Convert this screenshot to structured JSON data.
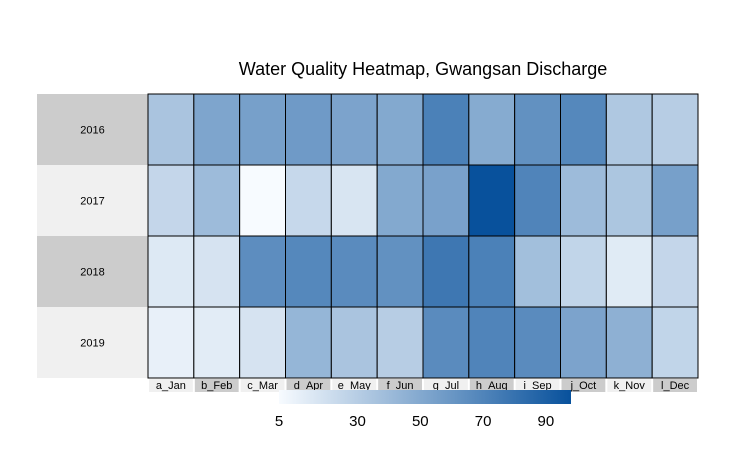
{
  "chart_data": {
    "type": "heatmap",
    "title": "Water Quality Heatmap, Gwangsan Discharge",
    "rows": [
      "2016",
      "2017",
      "2018",
      "2019"
    ],
    "columns": [
      "a_Jan",
      "b_Feb",
      "c_Mar",
      "d_Apr",
      "e_May",
      "f_Jun",
      "g_Jul",
      "h_Aug",
      "i_Sep",
      "j_Oct",
      "k_Nov",
      "l_Dec"
    ],
    "values": [
      [
        35,
        52,
        55,
        58,
        53,
        50,
        72,
        49,
        63,
        68,
        33,
        30
      ],
      [
        25,
        40,
        5,
        24,
        17,
        50,
        54,
        98,
        70,
        40,
        34,
        55
      ],
      [
        15,
        18,
        65,
        68,
        66,
        63,
        77,
        72,
        38,
        26,
        14,
        25
      ],
      [
        11,
        13,
        18,
        43,
        35,
        30,
        66,
        70,
        66,
        53,
        46,
        26
      ]
    ],
    "color_scale": {
      "min": 5,
      "max": 98,
      "low_color": "#f7fbff",
      "high_color": "#08519c"
    },
    "legend": {
      "position": "bottom",
      "ticks": [
        5,
        30,
        50,
        70,
        90
      ]
    },
    "row_label_backgrounds": [
      "#cccccc",
      "#f0f0f0",
      "#cccccc",
      "#f0f0f0"
    ],
    "column_label_backgrounds": [
      "#f0f0f0",
      "#cccccc",
      "#f0f0f0",
      "#cccccc",
      "#f0f0f0",
      "#cccccc",
      "#f0f0f0",
      "#cccccc",
      "#f0f0f0",
      "#cccccc",
      "#f0f0f0",
      "#cccccc"
    ]
  }
}
